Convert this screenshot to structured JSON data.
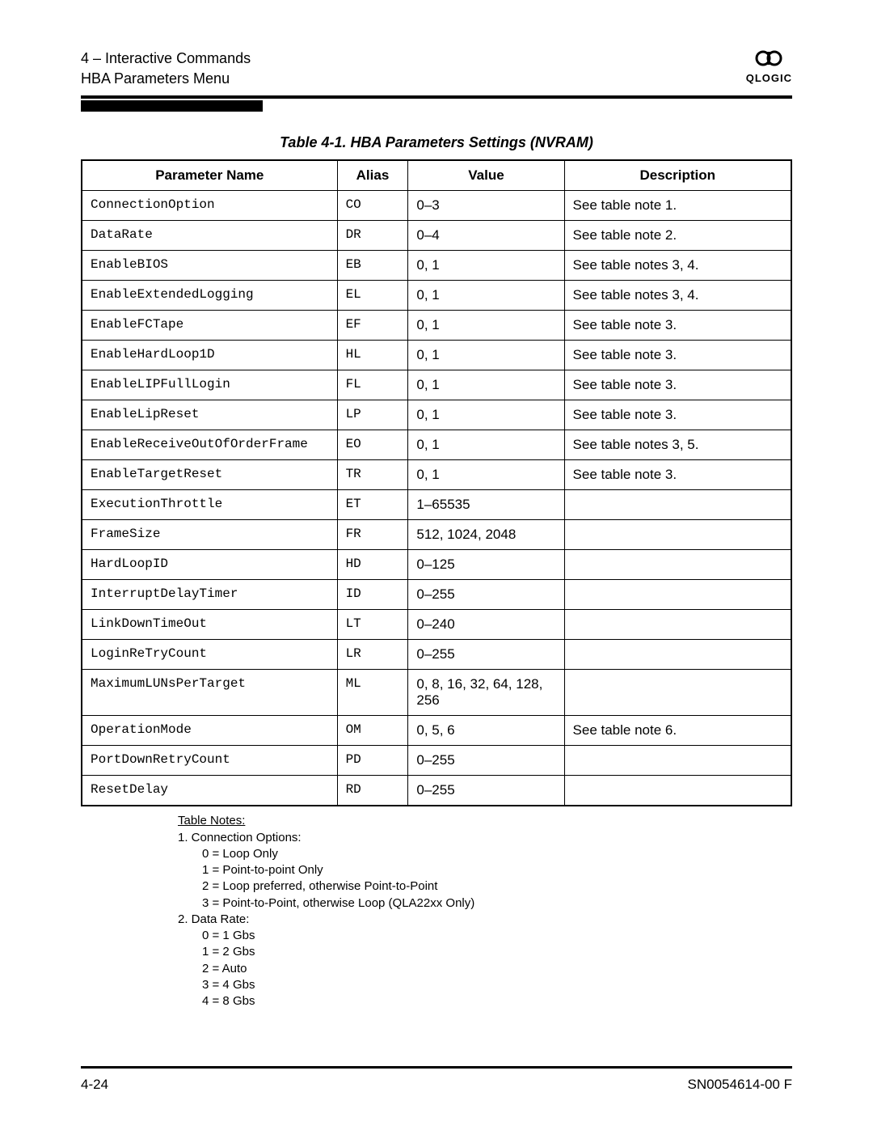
{
  "header": {
    "line1": "4 – Interactive Commands",
    "line2": "HBA Parameters Menu",
    "logo_name": "QLOGIC"
  },
  "table": {
    "caption": "Table 4-1. HBA Parameters Settings (NVRAM)",
    "columns": [
      "Parameter Name",
      "Alias",
      "Value",
      "Description"
    ],
    "rows": [
      [
        "ConnectionOption",
        "CO",
        "0–3",
        "See table note 1."
      ],
      [
        "DataRate",
        "DR",
        "0–4",
        "See table note 2."
      ],
      [
        "EnableBIOS",
        "EB",
        "0, 1",
        "See table notes 3, 4."
      ],
      [
        "EnableExtendedLogging",
        "EL",
        "0, 1",
        "See table notes 3, 4."
      ],
      [
        "EnableFCTape",
        "EF",
        "0, 1",
        "See table note 3."
      ],
      [
        "EnableHardLoop1D",
        "HL",
        "0, 1",
        "See table note 3."
      ],
      [
        "EnableLIPFullLogin",
        "FL",
        "0, 1",
        "See table note 3."
      ],
      [
        "EnableLipReset",
        "LP",
        "0, 1",
        "See table note 3."
      ],
      [
        "EnableReceiveOutOfOrderFrame",
        "EO",
        "0, 1",
        "See table notes 3, 5."
      ],
      [
        "EnableTargetReset",
        "TR",
        "0, 1",
        "See table note 3."
      ],
      [
        "ExecutionThrottle",
        "ET",
        "1–65535",
        ""
      ],
      [
        "FrameSize",
        "FR",
        "512, 1024, 2048",
        ""
      ],
      [
        "HardLoopID",
        "HD",
        "0–125",
        ""
      ],
      [
        "InterruptDelayTimer",
        "ID",
        "0–255",
        ""
      ],
      [
        "LinkDownTimeOut",
        "LT",
        "0–240",
        ""
      ],
      [
        "LoginReTryCount",
        "LR",
        "0–255",
        ""
      ],
      [
        "MaximumLUNsPerTarget",
        "ML",
        "0, 8, 16, 32, 64, 128, 256",
        ""
      ],
      [
        "OperationMode",
        "OM",
        "0, 5, 6",
        "See table note 6."
      ],
      [
        "PortDownRetryCount",
        "PD",
        "0–255",
        ""
      ],
      [
        "ResetDelay",
        "RD",
        "0–255",
        ""
      ]
    ]
  },
  "notes": {
    "title": "Table Notes:",
    "n1_title": "1. Connection Options:",
    "n1_lines": [
      "0 = Loop Only",
      "1 = Point-to-point Only",
      "2 = Loop preferred, otherwise Point-to-Point",
      "3 = Point-to-Point, otherwise Loop (QLA22xx Only)"
    ],
    "n2_title": "2. Data Rate:",
    "n2_lines": [
      "0 = 1 Gbs",
      "1 = 2 Gbs",
      "2 = Auto",
      "3 = 4 Gbs",
      "4 = 8 Gbs"
    ]
  },
  "footer": {
    "page": "4-24",
    "docid": "SN0054614-00  F"
  }
}
